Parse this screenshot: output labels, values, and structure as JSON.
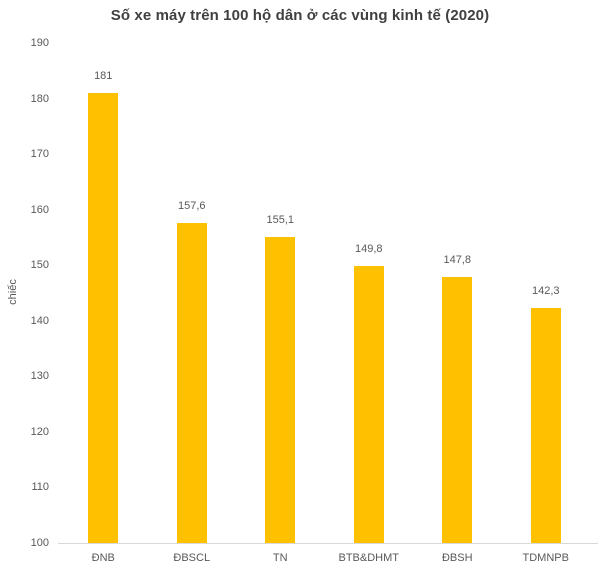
{
  "chart_data": {
    "type": "bar",
    "title": "Số xe máy trên 100 hộ dân ở các vùng kinh tế (2020)",
    "categories": [
      "ĐNB",
      "ĐBSCL",
      "TN",
      "BTB&DHMT",
      "ĐBSH",
      "TDMNPB"
    ],
    "values": [
      181,
      157.6,
      155.1,
      149.8,
      147.8,
      142.3
    ],
    "value_labels": [
      "181",
      "157,6",
      "155,1",
      "149,8",
      "147,8",
      "142,3"
    ],
    "xlabel": "",
    "ylabel": "chiếc",
    "ylim": [
      100,
      190
    ],
    "ytick_step": 10,
    "ytick_labels": [
      "100",
      "110",
      "120",
      "130",
      "140",
      "150",
      "160",
      "170",
      "180",
      "190"
    ],
    "grid": false,
    "legend": false,
    "colors": {
      "bar": "#FFC000",
      "axis_line": "#D9D9D9",
      "title_text": "#404040",
      "label_text": "#595959"
    }
  }
}
